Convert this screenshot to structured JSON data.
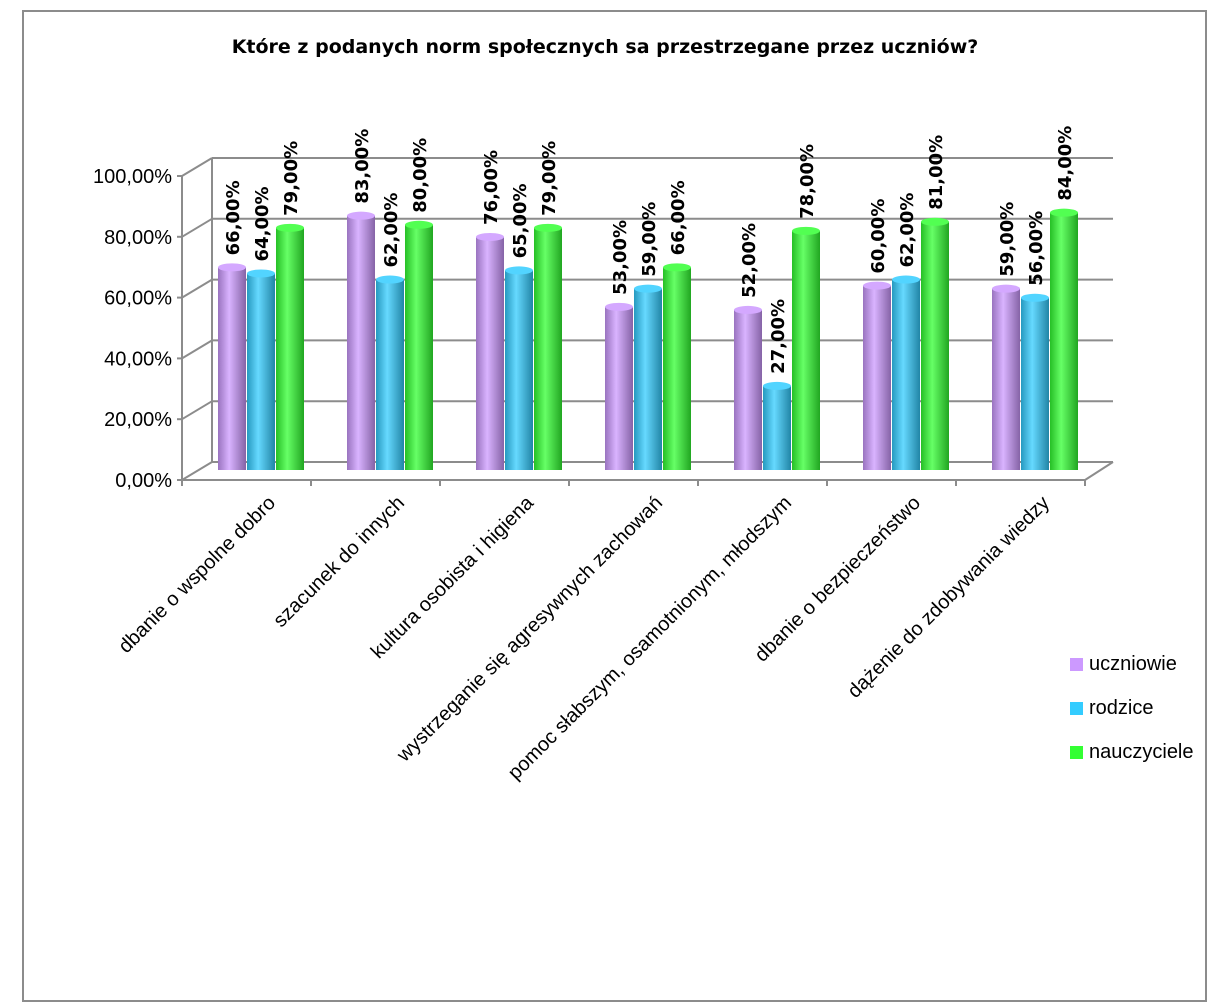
{
  "chart_data": {
    "type": "bar",
    "title": "Które z podanych norm społecznych sa przestrzegane przez uczniów?",
    "categories": [
      "dbanie o wspolne dobro",
      "szacunek do innych",
      "kultura osobista i higiena",
      "wystrzeganie się agresywnych zachowań",
      "pomoc słabszym, osamotnionym, młodszym",
      "dbanie o bezpieczeństwo",
      "dążenie do zdobywania wiedzy"
    ],
    "series": [
      {
        "name": "uczniowie",
        "values": [
          66,
          83,
          76,
          53,
          52,
          60,
          59
        ],
        "color": "#cc99ff"
      },
      {
        "name": "rodzice",
        "values": [
          64,
          62,
          65,
          59,
          27,
          62,
          56
        ],
        "color": "#33ccff"
      },
      {
        "name": "nauczyciele",
        "values": [
          79,
          80,
          79,
          66,
          78,
          81,
          84
        ],
        "color": "#33ff33"
      }
    ],
    "data_labels": [
      [
        "66,00%",
        "83,00%",
        "76,00%",
        "53,00%",
        "52,00%",
        "60,00%",
        "59,00%"
      ],
      [
        "64,00%",
        "62,00%",
        "65,00%",
        "59,00%",
        "27,00%",
        "62,00%",
        "56,00%"
      ],
      [
        "79,00%",
        "80,00%",
        "79,00%",
        "66,00%",
        "78,00%",
        "81,00%",
        "84,00%"
      ]
    ],
    "y_ticks": [
      "0,00%",
      "20,00%",
      "40,00%",
      "60,00%",
      "80,00%",
      "100,00%"
    ],
    "ylim": [
      0,
      100
    ],
    "grid": true,
    "legend_position": "right"
  }
}
